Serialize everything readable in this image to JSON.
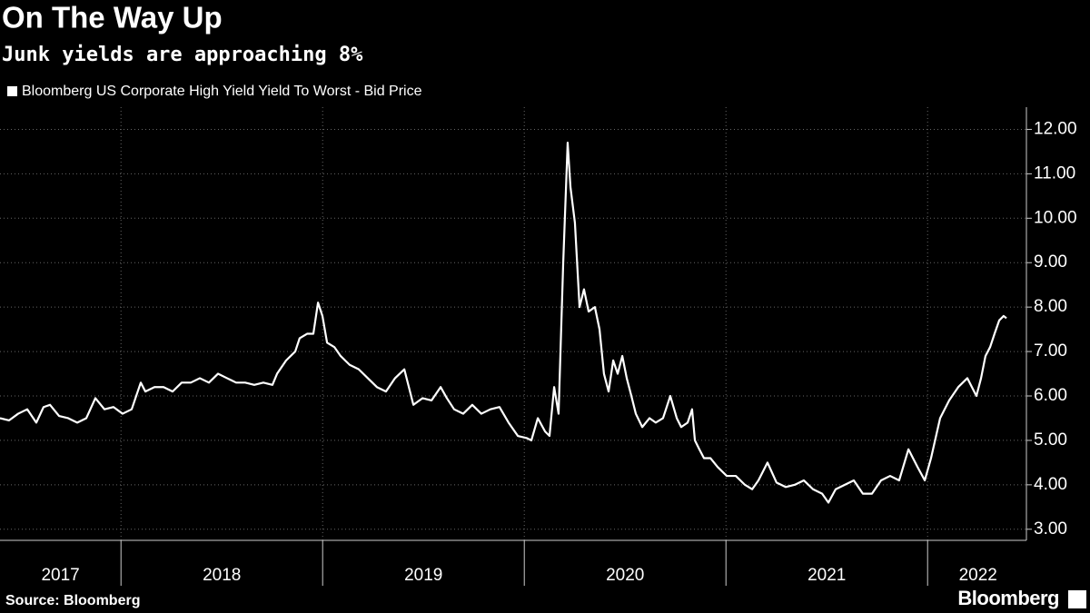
{
  "chart_data": {
    "type": "line",
    "title": "On The Way Up",
    "subtitle": "Junk yields are approaching 8%",
    "source": "Source: Bloomberg",
    "branding": "Bloomberg",
    "xlim": [
      2017.4,
      2022.49
    ],
    "ylim": [
      2.75,
      12.5
    ],
    "yticks": [
      {
        "value": 3,
        "label": "3.00"
      },
      {
        "value": 4,
        "label": "4.00"
      },
      {
        "value": 5,
        "label": "5.00"
      },
      {
        "value": 6,
        "label": "6.00"
      },
      {
        "value": 7,
        "label": "7.00"
      },
      {
        "value": 8,
        "label": "8.00"
      },
      {
        "value": 9,
        "label": "9.00"
      },
      {
        "value": 10,
        "label": "10.00"
      },
      {
        "value": 11,
        "label": "11.00"
      },
      {
        "value": 12,
        "label": "12.00"
      }
    ],
    "xticks": [
      {
        "value": 2017.7,
        "label": "2017"
      },
      {
        "value": 2018.5,
        "label": "2018"
      },
      {
        "value": 2019.5,
        "label": "2019"
      },
      {
        "value": 2020.5,
        "label": "2020"
      },
      {
        "value": 2021.5,
        "label": "2021"
      },
      {
        "value": 2022.25,
        "label": "2022"
      }
    ],
    "xgrid": [
      2018,
      2019,
      2020,
      2021,
      2022
    ],
    "grid": true,
    "series": [
      {
        "name": "Bloomberg US Corporate High Yield Yield To Worst - Bid Price",
        "color": "#ffffff",
        "x": [
          2017.4,
          2017.445,
          2017.49,
          2017.535,
          2017.58,
          2017.616,
          2017.648,
          2017.693,
          2017.738,
          2017.783,
          2017.828,
          2017.873,
          2017.918,
          2017.963,
          2018.008,
          2018.053,
          2018.098,
          2018.121,
          2018.166,
          2018.211,
          2018.256,
          2018.301,
          2018.346,
          2018.391,
          2018.436,
          2018.481,
          2018.526,
          2018.571,
          2018.616,
          2018.661,
          2018.706,
          2018.751,
          2018.774,
          2018.819,
          2018.864,
          2018.886,
          2018.923,
          2018.954,
          2018.977,
          2018.999,
          2019.022,
          2019.058,
          2019.089,
          2019.134,
          2019.179,
          2019.224,
          2019.269,
          2019.314,
          2019.359,
          2019.405,
          2019.45,
          2019.495,
          2019.54,
          2019.585,
          2019.616,
          2019.652,
          2019.697,
          2019.742,
          2019.787,
          2019.832,
          2019.877,
          2019.922,
          2019.968,
          2020.013,
          2020.035,
          2020.067,
          2020.103,
          2020.125,
          2020.148,
          2020.17,
          2020.193,
          2020.215,
          2020.229,
          2020.251,
          2020.274,
          2020.296,
          2020.319,
          2020.35,
          2020.373,
          2020.395,
          2020.418,
          2020.441,
          2020.463,
          2020.486,
          2020.508,
          2020.531,
          2020.553,
          2020.585,
          2020.621,
          2020.652,
          2020.688,
          2020.724,
          2020.756,
          2020.778,
          2020.81,
          2020.832,
          2020.846,
          2020.868,
          2020.891,
          2020.923,
          2020.959,
          2021.004,
          2021.049,
          2021.094,
          2021.13,
          2021.161,
          2021.206,
          2021.251,
          2021.296,
          2021.341,
          2021.386,
          2021.432,
          2021.477,
          2021.508,
          2021.544,
          2021.589,
          2021.634,
          2021.679,
          2021.724,
          2021.769,
          2021.814,
          2021.859,
          2021.905,
          2021.95,
          2021.986,
          2022.017,
          2022.062,
          2022.107,
          2022.152,
          2022.197,
          2022.242,
          2022.265,
          2022.287,
          2022.31,
          2022.332,
          2022.355,
          2022.377,
          2022.391
        ],
        "values": [
          5.5,
          5.45,
          5.6,
          5.7,
          5.4,
          5.75,
          5.8,
          5.55,
          5.5,
          5.4,
          5.5,
          5.95,
          5.7,
          5.75,
          5.6,
          5.7,
          6.3,
          6.1,
          6.2,
          6.2,
          6.1,
          6.3,
          6.3,
          6.4,
          6.3,
          6.5,
          6.4,
          6.3,
          6.3,
          6.25,
          6.3,
          6.25,
          6.5,
          6.8,
          7.0,
          7.3,
          7.4,
          7.4,
          8.1,
          7.8,
          7.2,
          7.1,
          6.9,
          6.7,
          6.6,
          6.4,
          6.2,
          6.1,
          6.4,
          6.6,
          5.8,
          5.95,
          5.9,
          6.2,
          5.95,
          5.7,
          5.6,
          5.8,
          5.6,
          5.7,
          5.75,
          5.4,
          5.1,
          5.05,
          5.0,
          5.5,
          5.2,
          5.1,
          6.2,
          5.6,
          9.0,
          11.7,
          10.7,
          9.9,
          8.0,
          8.4,
          7.9,
          8.0,
          7.5,
          6.5,
          6.1,
          6.8,
          6.5,
          6.9,
          6.4,
          6.0,
          5.6,
          5.3,
          5.5,
          5.4,
          5.5,
          6.0,
          5.5,
          5.3,
          5.4,
          5.7,
          5.0,
          4.8,
          4.6,
          4.6,
          4.4,
          4.2,
          4.2,
          4.0,
          3.9,
          4.1,
          4.5,
          4.05,
          3.95,
          4.0,
          4.1,
          3.9,
          3.8,
          3.6,
          3.9,
          4.0,
          4.1,
          3.8,
          3.8,
          4.1,
          4.2,
          4.1,
          4.8,
          4.4,
          4.1,
          4.6,
          5.5,
          5.9,
          6.2,
          6.4,
          6.0,
          6.4,
          6.9,
          7.1,
          7.4,
          7.7,
          7.8,
          7.75
        ]
      }
    ]
  }
}
